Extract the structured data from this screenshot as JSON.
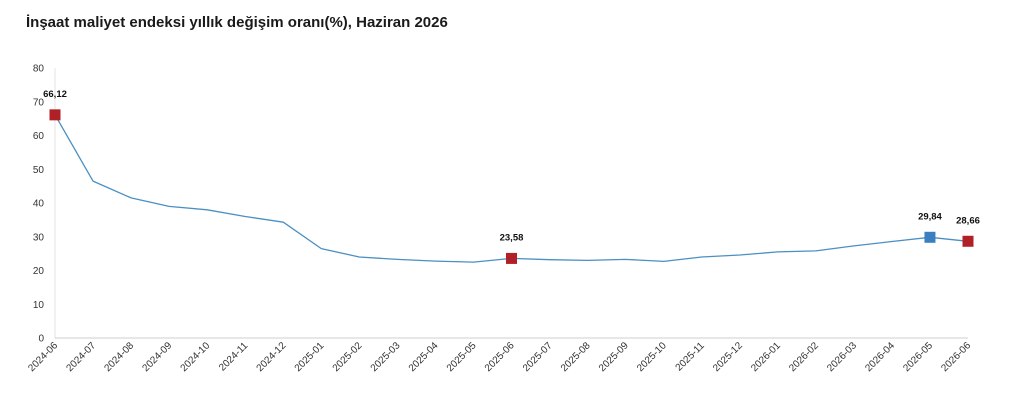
{
  "chart_data": {
    "type": "line",
    "title": "İnşaat maliyet endeksi yıllık değişim oranı(%), Haziran 2026",
    "xlabel": "",
    "ylabel": "",
    "ylim": [
      0,
      80
    ],
    "yticks": [
      0,
      10,
      20,
      30,
      40,
      50,
      60,
      70,
      80
    ],
    "grid": false,
    "categories": [
      "2024-06",
      "2024-07",
      "2024-08",
      "2024-09",
      "2024-10",
      "2024-11",
      "2024-12",
      "2025-01",
      "2025-02",
      "2025-03",
      "2025-04",
      "2025-05",
      "2025-06",
      "2025-07",
      "2025-08",
      "2025-09",
      "2025-10",
      "2025-11",
      "2025-12",
      "2026-01",
      "2026-02",
      "2026-03",
      "2026-04",
      "2026-05",
      "2026-06"
    ],
    "series": [
      {
        "values": [
          66.12,
          46.5,
          41.5,
          39.0,
          38.0,
          36.0,
          34.3,
          26.5,
          24.0,
          23.3,
          22.8,
          22.5,
          23.58,
          23.2,
          23.0,
          23.3,
          22.7,
          24.0,
          24.6,
          25.5,
          25.8,
          27.3,
          28.6,
          29.84,
          28.66
        ],
        "color": "#4a90c2"
      }
    ],
    "highlights": [
      {
        "index": 0,
        "label": "66,12",
        "color": "#b02027"
      },
      {
        "index": 12,
        "label": "23,58",
        "color": "#b02027"
      },
      {
        "index": 23,
        "label": "29,84",
        "color": "#3a7fbf"
      },
      {
        "index": 24,
        "label": "28,66",
        "color": "#b02027"
      }
    ]
  }
}
